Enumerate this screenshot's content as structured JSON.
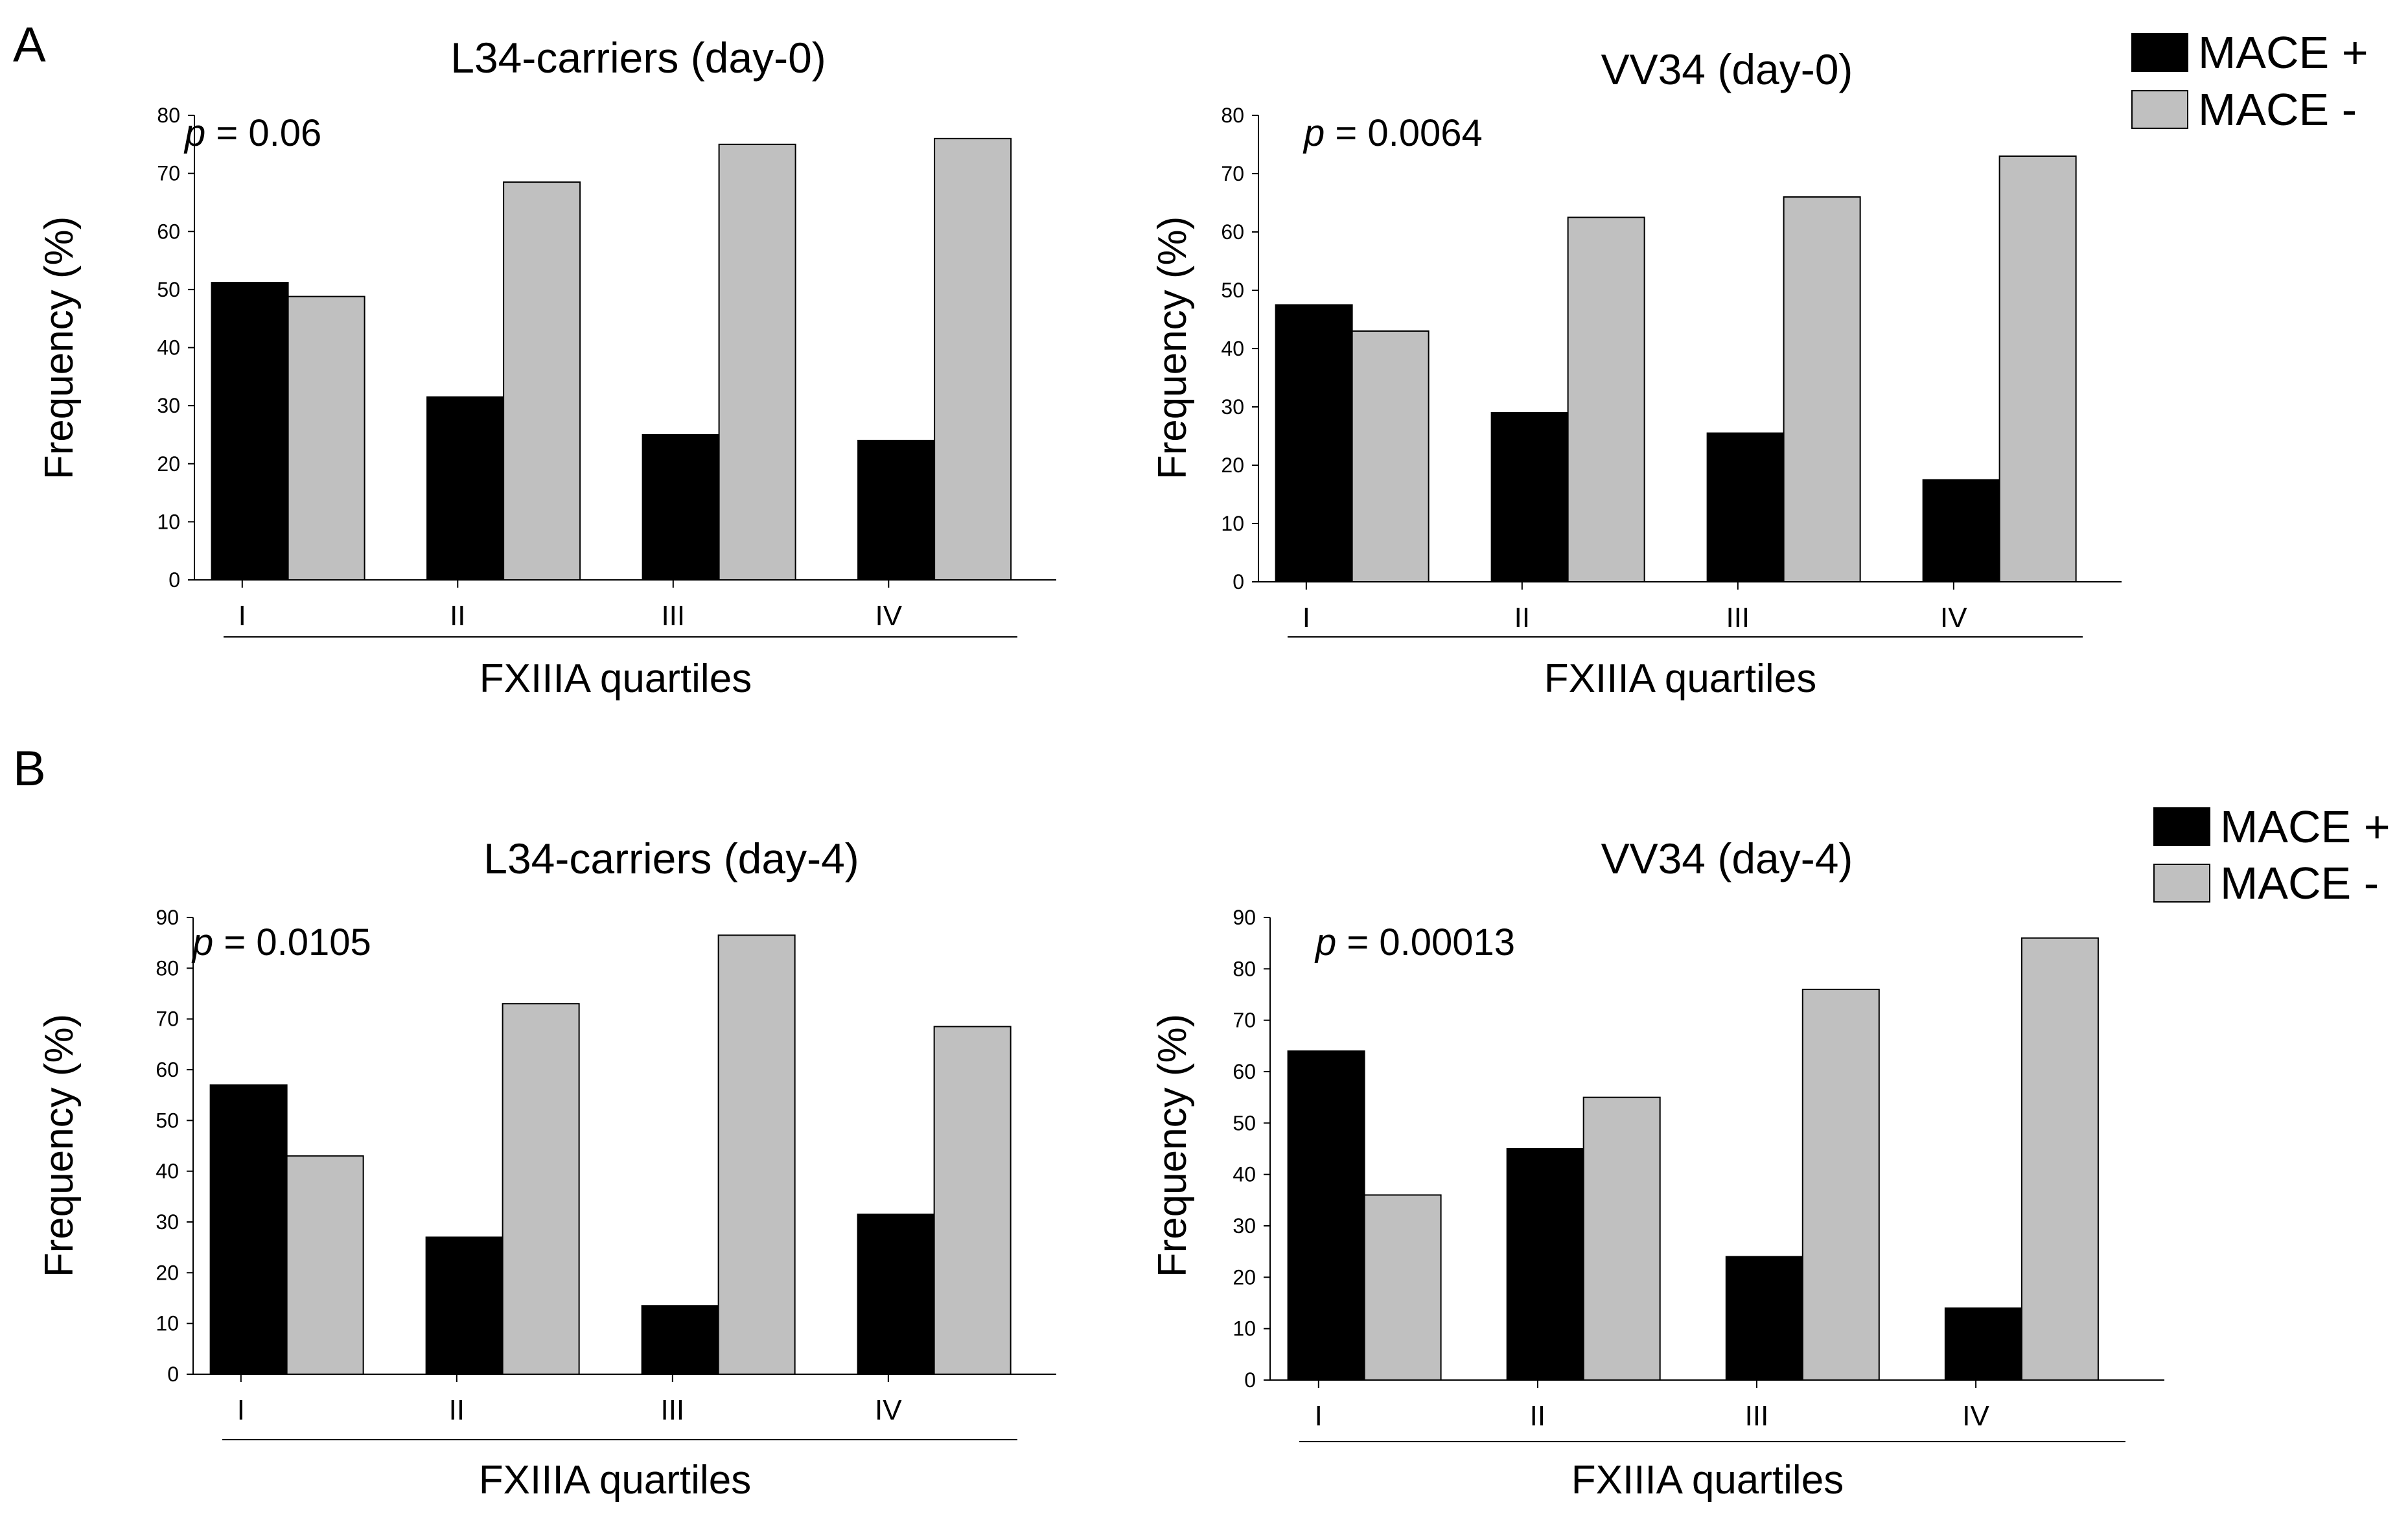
{
  "panel_labels": [
    "A",
    "B"
  ],
  "legend": {
    "entries": [
      {
        "label": "MACE +",
        "color": "#000000"
      },
      {
        "label": "MACE -",
        "color": "#c0c0c0"
      }
    ]
  },
  "chart_data": [
    {
      "type": "bar",
      "title": "L34-carriers (day-0)",
      "xlabel": "FXIIIA quartiles",
      "ylabel": "Frequency (%)",
      "p_prefix": "p",
      "p_suffix": " = 0.06",
      "ylim": [
        0,
        80
      ],
      "yticks": [
        0,
        10,
        20,
        30,
        40,
        50,
        60,
        70,
        80
      ],
      "categories": [
        "I",
        "II",
        "III",
        "IV"
      ],
      "series": [
        {
          "name": "MACE +",
          "color": "#000000",
          "values": [
            51.2,
            31.5,
            25,
            24
          ]
        },
        {
          "name": "MACE -",
          "color": "#c0c0c0",
          "values": [
            48.8,
            68.5,
            75,
            76
          ]
        }
      ]
    },
    {
      "type": "bar",
      "title": "VV34 (day-0)",
      "xlabel": "FXIIIA quartiles",
      "ylabel": "Frequency (%)",
      "p_prefix": "p",
      "p_suffix": " = 0.0064",
      "ylim": [
        0,
        80
      ],
      "yticks": [
        0,
        10,
        20,
        30,
        40,
        50,
        60,
        70,
        80
      ],
      "categories": [
        "I",
        "II",
        "III",
        "IV"
      ],
      "series": [
        {
          "name": "MACE +",
          "color": "#000000",
          "values": [
            47.5,
            29,
            25.5,
            17.5
          ]
        },
        {
          "name": "MACE -",
          "color": "#c0c0c0",
          "values": [
            43,
            62.5,
            66,
            73
          ]
        }
      ]
    },
    {
      "type": "bar",
      "title": "L34-carriers (day-4)",
      "xlabel": "FXIIIA quartiles",
      "ylabel": "Frequency (%)",
      "p_prefix": "p",
      "p_suffix": " = 0.0105",
      "ylim": [
        0,
        90
      ],
      "yticks": [
        0,
        10,
        20,
        30,
        40,
        50,
        60,
        70,
        80,
        90
      ],
      "categories": [
        "I",
        "II",
        "III",
        "IV"
      ],
      "series": [
        {
          "name": "MACE +",
          "color": "#000000",
          "values": [
            57,
            27,
            13.5,
            31.5
          ]
        },
        {
          "name": "MACE -",
          "color": "#c0c0c0",
          "values": [
            43,
            73,
            86.5,
            68.5
          ]
        }
      ]
    },
    {
      "type": "bar",
      "title": "VV34 (day-4)",
      "xlabel": "FXIIIA quartiles",
      "ylabel": "Frequency (%)",
      "p_prefix": "p",
      "p_suffix": " = 0.00013",
      "ylim": [
        0,
        90
      ],
      "yticks": [
        0,
        10,
        20,
        30,
        40,
        50,
        60,
        70,
        80,
        90
      ],
      "categories": [
        "I",
        "II",
        "III",
        "IV"
      ],
      "series": [
        {
          "name": "MACE +",
          "color": "#000000",
          "values": [
            64,
            45,
            24,
            14
          ]
        },
        {
          "name": "MACE -",
          "color": "#c0c0c0",
          "values": [
            36,
            55,
            76,
            86
          ]
        }
      ]
    }
  ]
}
